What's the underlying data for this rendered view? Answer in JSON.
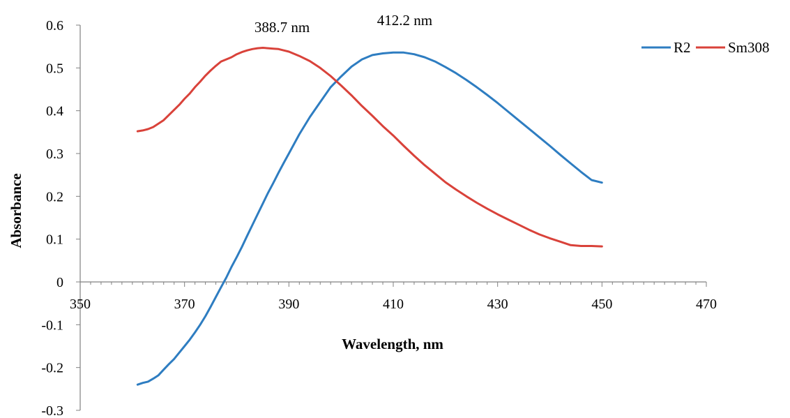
{
  "chart_data": {
    "type": "line",
    "xlabel": "Wavelength, nm",
    "ylabel": "Absorbance",
    "xlim": [
      350,
      470
    ],
    "ylim": [
      -0.3,
      0.6
    ],
    "x_ticks": [
      350,
      370,
      390,
      410,
      430,
      450,
      470
    ],
    "y_ticks": [
      0.6,
      0.5,
      0.4,
      0.3,
      0.2,
      0.1,
      0,
      -0.1,
      -0.2,
      -0.3
    ],
    "grid": false,
    "legend_position": "top-right",
    "annotations": [
      {
        "text": "388.7 nm",
        "x": 388.7
      },
      {
        "text": "412.2 nm",
        "x": 412.2
      }
    ],
    "series": [
      {
        "name": "R2",
        "color": "#2e7dc1",
        "x": [
          361,
          362,
          363,
          364,
          365,
          366,
          367,
          368,
          369,
          370,
          371,
          372,
          373,
          374,
          375,
          376,
          377,
          378,
          379,
          380,
          381,
          382,
          383,
          384,
          385,
          386,
          387,
          388,
          389,
          390,
          392,
          394,
          396,
          398,
          400,
          402,
          404,
          406,
          408,
          410,
          412,
          414,
          416,
          418,
          420,
          422,
          424,
          426,
          428,
          430,
          432,
          434,
          436,
          438,
          440,
          442,
          444,
          446,
          448,
          450
        ],
        "y": [
          -0.24,
          -0.236,
          -0.233,
          -0.226,
          -0.218,
          -0.205,
          -0.192,
          -0.18,
          -0.165,
          -0.15,
          -0.135,
          -0.118,
          -0.1,
          -0.08,
          -0.058,
          -0.035,
          -0.012,
          0.01,
          0.035,
          0.058,
          0.082,
          0.108,
          0.133,
          0.158,
          0.183,
          0.208,
          0.231,
          0.255,
          0.278,
          0.3,
          0.345,
          0.385,
          0.42,
          0.455,
          0.48,
          0.503,
          0.52,
          0.53,
          0.534,
          0.536,
          0.536,
          0.532,
          0.525,
          0.515,
          0.502,
          0.488,
          0.472,
          0.455,
          0.437,
          0.418,
          0.398,
          0.378,
          0.358,
          0.338,
          0.318,
          0.297,
          0.277,
          0.257,
          0.238,
          0.232
        ]
      },
      {
        "name": "Sm308",
        "color": "#d9423a",
        "x": [
          361,
          362,
          363,
          364,
          365,
          366,
          367,
          368,
          369,
          370,
          371,
          372,
          373,
          374,
          375,
          376,
          377,
          378,
          379,
          380,
          381,
          382,
          383,
          384,
          385,
          386,
          387,
          388,
          389,
          390,
          392,
          394,
          396,
          398,
          400,
          402,
          404,
          406,
          408,
          410,
          412,
          414,
          416,
          418,
          420,
          422,
          424,
          426,
          428,
          430,
          432,
          434,
          436,
          438,
          440,
          442,
          444,
          446,
          448,
          450
        ],
        "y": [
          0.352,
          0.354,
          0.357,
          0.362,
          0.37,
          0.378,
          0.39,
          0.402,
          0.414,
          0.428,
          0.44,
          0.455,
          0.468,
          0.482,
          0.494,
          0.505,
          0.515,
          0.52,
          0.525,
          0.532,
          0.537,
          0.541,
          0.544,
          0.546,
          0.547,
          0.546,
          0.545,
          0.544,
          0.541,
          0.538,
          0.528,
          0.516,
          0.5,
          0.481,
          0.459,
          0.436,
          0.411,
          0.388,
          0.364,
          0.342,
          0.318,
          0.295,
          0.273,
          0.253,
          0.233,
          0.216,
          0.2,
          0.185,
          0.171,
          0.158,
          0.146,
          0.134,
          0.122,
          0.111,
          0.102,
          0.094,
          0.086,
          0.084,
          0.084,
          0.083
        ]
      }
    ]
  }
}
